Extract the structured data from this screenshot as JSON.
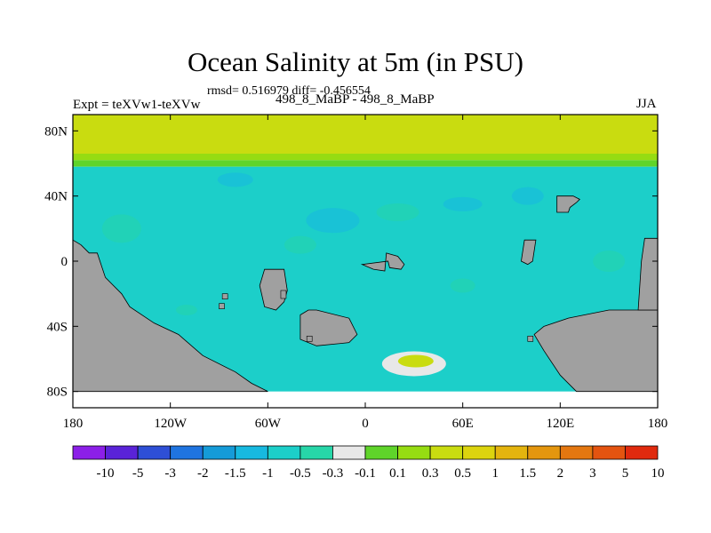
{
  "header": {
    "title": "Ocean Salinity at 5m (in PSU)",
    "stats": "rmsd= 0.516979 diff= -0.456554",
    "experiment": "Expt = teXVw1-teXVw",
    "runs": "498_8_MaBP - 498_8_MaBP",
    "season": "JJA"
  },
  "chart_data": {
    "type": "heatmap",
    "title": "Ocean Salinity at 5m (in PSU)",
    "subtitle": "498_8_MaBP - 498_8_MaBP",
    "xlabel": "",
    "ylabel": "",
    "xlim": [
      -180,
      180
    ],
    "ylim": [
      -90,
      90
    ],
    "x_ticks": [
      {
        "value": -180,
        "label": "180"
      },
      {
        "value": -120,
        "label": "120W"
      },
      {
        "value": -60,
        "label": "60W"
      },
      {
        "value": 0,
        "label": "0"
      },
      {
        "value": 60,
        "label": "60E"
      },
      {
        "value": 120,
        "label": "120E"
      },
      {
        "value": 180,
        "label": "180"
      }
    ],
    "y_ticks": [
      {
        "value": 80,
        "label": "80N"
      },
      {
        "value": 40,
        "label": "40N"
      },
      {
        "value": 0,
        "label": "0"
      },
      {
        "value": -40,
        "label": "40S"
      },
      {
        "value": -80,
        "label": "80S"
      }
    ],
    "land_color": "#a0a0a0",
    "colorbar": {
      "colors": [
        "#8c1fe8",
        "#5a23d8",
        "#2e4fd6",
        "#1f74e0",
        "#159bd8",
        "#17b9e0",
        "#1ccfc9",
        "#27d6a8",
        "#e8e8e8",
        "#5fd42a",
        "#96dc12",
        "#c9dc10",
        "#dcd40e",
        "#e4b40e",
        "#e4960e",
        "#e47710",
        "#e45410",
        "#e02a0e"
      ],
      "labels": [
        "-10",
        "-5",
        "-3",
        "-2",
        "-1.5",
        "-1",
        "-0.5",
        "-0.3",
        "-0.1",
        "0.1",
        "0.3",
        "0.5",
        "1",
        "1.5",
        "2",
        "3",
        "5",
        "10"
      ]
    },
    "field_bands": [
      {
        "lat_from": 90,
        "lat_to": 66,
        "level": "0.3 to 0.5"
      },
      {
        "lat_from": 66,
        "lat_to": 62,
        "level": "0.1 to 0.3"
      },
      {
        "lat_from": 62,
        "lat_to": 58,
        "level": "-0.1 to 0.1"
      },
      {
        "lat_from": 58,
        "lat_to": -80,
        "level": "-1 to -0.5"
      }
    ],
    "field_anomaly": {
      "lon": 30,
      "lat": -63,
      "peak_level": "0.3 to 0.5"
    }
  }
}
